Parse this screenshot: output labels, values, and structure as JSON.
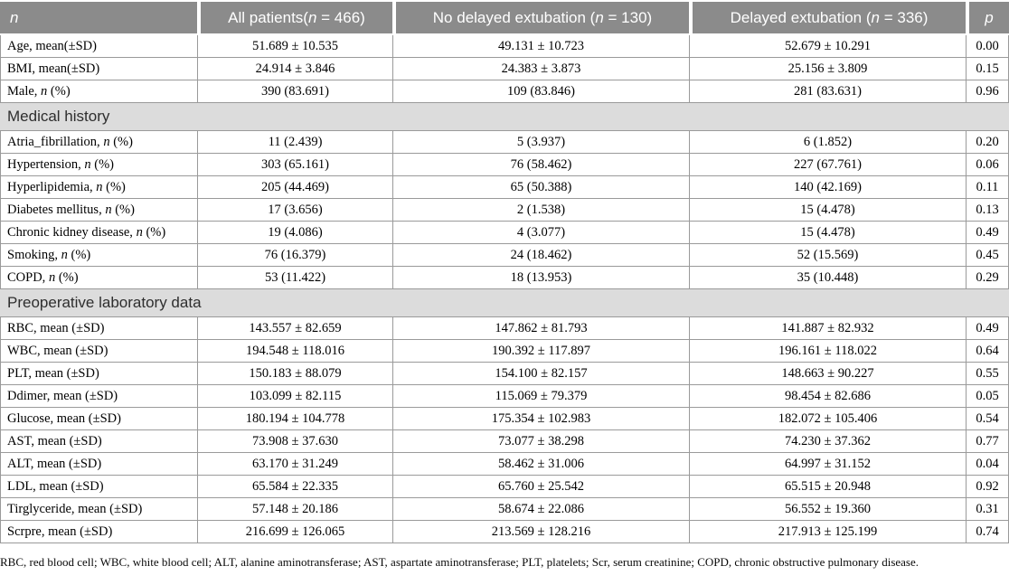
{
  "colors": {
    "header_bg": "#8b8b8b",
    "header_text": "#ffffff",
    "section_bg": "#dcdcdc",
    "border": "#9a9a9a"
  },
  "table": {
    "header": [
      "*n*",
      "All patients(*n* = 466)",
      "No delayed extubation (*n* = 130)",
      "Delayed extubation (*n* = 336)",
      "*p*"
    ],
    "sections": [
      {
        "title": "",
        "rows": [
          {
            "label": "Age, mean(±SD)",
            "cells": [
              "51.689 ± 10.535",
              "49.131 ± 10.723",
              "52.679 ± 10.291",
              "0.00"
            ]
          },
          {
            "label": "BMI, mean(±SD)",
            "cells": [
              "24.914 ± 3.846",
              "24.383 ± 3.873",
              "25.156 ± 3.809",
              "0.15"
            ]
          },
          {
            "label": "Male, *n* (%)",
            "cells": [
              "390 (83.691)",
              "109 (83.846)",
              "281 (83.631)",
              "0.96"
            ]
          }
        ]
      },
      {
        "title": "Medical history",
        "rows": [
          {
            "label": "Atria_fibrillation, *n* (%)",
            "cells": [
              "11 (2.439)",
              "5 (3.937)",
              "6 (1.852)",
              "0.20"
            ]
          },
          {
            "label": "Hypertension, *n* (%)",
            "cells": [
              "303 (65.161)",
              "76 (58.462)",
              "227 (67.761)",
              "0.06"
            ]
          },
          {
            "label": "Hyperlipidemia, *n* (%)",
            "cells": [
              "205 (44.469)",
              "65 (50.388)",
              "140 (42.169)",
              "0.11"
            ]
          },
          {
            "label": "Diabetes mellitus, *n* (%)",
            "cells": [
              "17 (3.656)",
              "2 (1.538)",
              "15 (4.478)",
              "0.13"
            ]
          },
          {
            "label": "Chronic kidney disease, *n* (%)",
            "cells": [
              "19 (4.086)",
              "4 (3.077)",
              "15 (4.478)",
              "0.49"
            ]
          },
          {
            "label": "Smoking, *n* (%)",
            "cells": [
              "76 (16.379)",
              "24 (18.462)",
              "52 (15.569)",
              "0.45"
            ]
          },
          {
            "label": "COPD, *n* (%)",
            "cells": [
              "53 (11.422)",
              "18 (13.953)",
              "35 (10.448)",
              "0.29"
            ]
          }
        ]
      },
      {
        "title": "Preoperative laboratory data",
        "rows": [
          {
            "label": "RBC, mean (±SD)",
            "cells": [
              "143.557 ± 82.659",
              "147.862 ± 81.793",
              "141.887 ± 82.932",
              "0.49"
            ]
          },
          {
            "label": "WBC, mean (±SD)",
            "cells": [
              "194.548 ± 118.016",
              "190.392 ± 117.897",
              "196.161 ± 118.022",
              "0.64"
            ]
          },
          {
            "label": "PLT, mean (±SD)",
            "cells": [
              "150.183 ± 88.079",
              "154.100 ± 82.157",
              "148.663 ± 90.227",
              "0.55"
            ]
          },
          {
            "label": "Ddimer, mean (±SD)",
            "cells": [
              "103.099 ± 82.115",
              "115.069 ± 79.379",
              "98.454 ± 82.686",
              "0.05"
            ]
          },
          {
            "label": "Glucose, mean (±SD)",
            "cells": [
              "180.194 ± 104.778",
              "175.354 ± 102.983",
              "182.072 ± 105.406",
              "0.54"
            ]
          },
          {
            "label": "AST, mean (±SD)",
            "cells": [
              "73.908 ± 37.630",
              "73.077 ± 38.298",
              "74.230 ± 37.362",
              "0.77"
            ]
          },
          {
            "label": "ALT, mean (±SD)",
            "cells": [
              "63.170 ± 31.249",
              "58.462 ± 31.006",
              "64.997 ± 31.152",
              "0.04"
            ]
          },
          {
            "label": "LDL, mean (±SD)",
            "cells": [
              "65.584 ± 22.335",
              "65.760 ± 25.542",
              "65.515 ± 20.948",
              "0.92"
            ]
          },
          {
            "label": "Tirglyceride, mean (±SD)",
            "cells": [
              "57.148 ± 20.186",
              "58.674 ± 22.086",
              "56.552 ± 19.360",
              "0.31"
            ]
          },
          {
            "label": "Scrpre, mean (±SD)",
            "cells": [
              "216.699 ± 126.065",
              "213.569 ± 128.216",
              "217.913 ± 125.199",
              "0.74"
            ]
          }
        ]
      }
    ]
  },
  "footnote": "RBC, red blood cell; WBC, white blood cell; ALT, alanine aminotransferase; AST, aspartate aminotransferase; PLT, platelets; Scr, serum creatinine; COPD, chronic obstructive pulmonary disease."
}
